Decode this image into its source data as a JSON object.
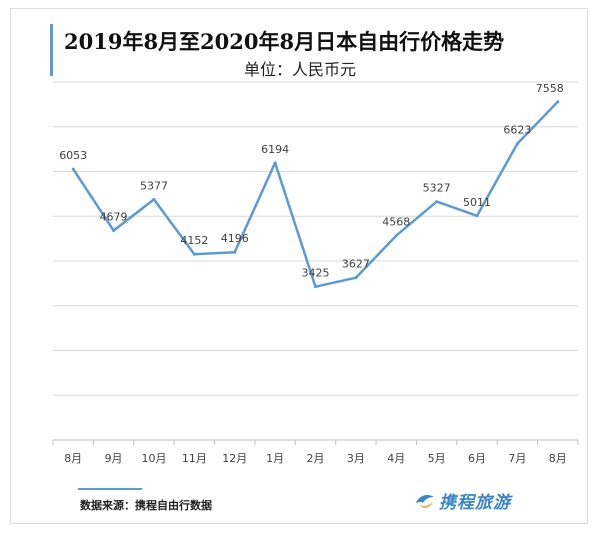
{
  "header": {
    "title": "2019年8月至2020年8月日本自由行价格走势",
    "subtitle": "单位：人民币元"
  },
  "footer": {
    "source": "数据来源：携程自由行数据",
    "logo_text": "携程旅游"
  },
  "colors": {
    "line": "#5b9bd5",
    "accent": "#5b9bd5",
    "gridline": "#d9d9d9",
    "label": "#404040"
  },
  "chart_data": {
    "type": "line",
    "title": "2019年8月至2020年8月日本自由行价格走势",
    "subtitle": "单位：人民币元",
    "categories": [
      "8月",
      "9月",
      "10月",
      "11月",
      "12月",
      "1月",
      "2月",
      "3月",
      "4月",
      "5月",
      "6月",
      "7月",
      "8月"
    ],
    "series": [
      {
        "values": [
          6053,
          4679,
          5377,
          4152,
          4196,
          6194,
          3425,
          3627,
          4568,
          5327,
          5011,
          6623,
          7558
        ]
      }
    ],
    "data_labels": [
      "6053",
      "4679",
      "5377",
      "4152",
      "4196",
      "6194",
      "3425",
      "3627",
      "4568",
      "5327",
      "5011",
      "6623",
      "7558"
    ],
    "ylim": [
      0,
      8000
    ],
    "ytick_step": 1000,
    "grid": true,
    "show_y_axis_labels": false,
    "legend": "none"
  }
}
